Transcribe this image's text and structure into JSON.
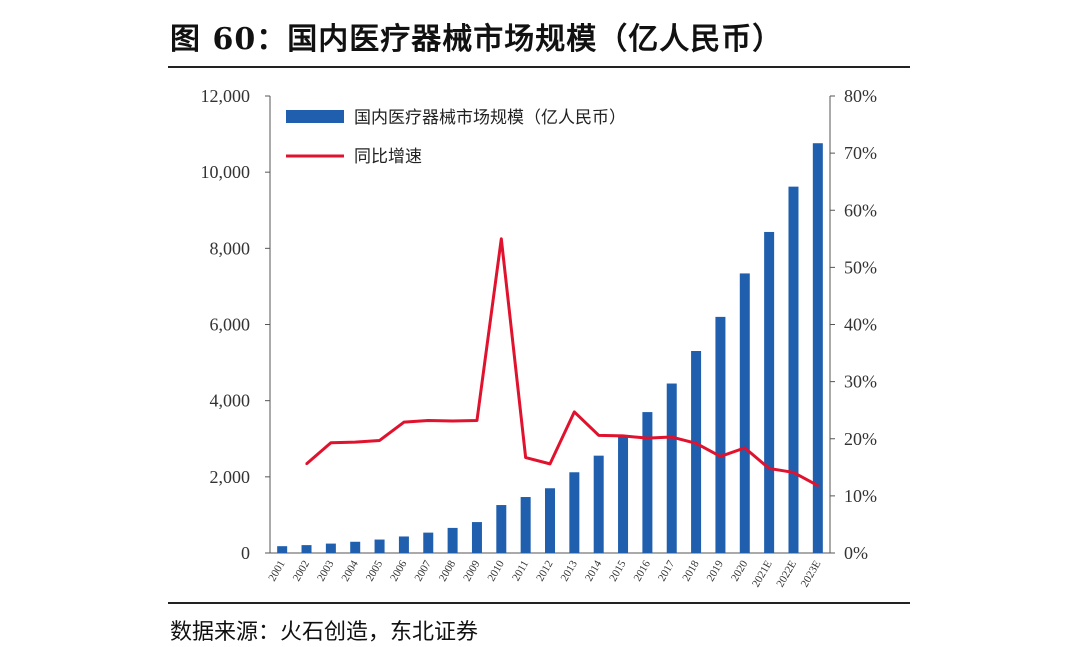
{
  "header": {
    "title": "图 60：国内医疗器械市场规模（亿人民币）"
  },
  "footer": {
    "source": "数据来源：火石创造，东北证券"
  },
  "chart_data": {
    "type": "bar",
    "categories": [
      "2001",
      "2002",
      "2003",
      "2004",
      "2005",
      "2006",
      "2007",
      "2008",
      "2009",
      "2010",
      "2011",
      "2012",
      "2013",
      "2014",
      "2015",
      "2016",
      "2017",
      "2018",
      "2019",
      "2020",
      "2021E",
      "2022E",
      "2023E"
    ],
    "series": [
      {
        "name": "国内医疗器械市场规模（亿人民币）",
        "type": "bar",
        "axis": "left",
        "color": "#1f5fae",
        "values": [
          179,
          207,
          247,
          295,
          353,
          434,
          535,
          659,
          812,
          1259,
          1470,
          1700,
          2120,
          2556,
          3080,
          3700,
          4450,
          5304,
          6200,
          7341,
          8430,
          9620,
          10760
        ]
      },
      {
        "name": "同比增速",
        "type": "line",
        "axis": "right",
        "color": "#e0122d",
        "values": [
          null,
          15.6,
          19.3,
          19.4,
          19.7,
          22.9,
          23.2,
          23.1,
          23.2,
          55.0,
          16.7,
          15.6,
          24.7,
          20.6,
          20.5,
          20.1,
          20.3,
          19.2,
          16.9,
          18.4,
          14.8,
          14.1,
          11.8
        ]
      }
    ],
    "y_left": {
      "ylim": [
        0,
        12000
      ],
      "ticks": [
        "0",
        "2,000",
        "4,000",
        "6,000",
        "8,000",
        "10,000",
        "12,000"
      ],
      "tick_values": [
        0,
        2000,
        4000,
        6000,
        8000,
        10000,
        12000
      ]
    },
    "y_right": {
      "ylim": [
        0,
        80
      ],
      "ticks": [
        "0%",
        "10%",
        "20%",
        "30%",
        "40%",
        "50%",
        "60%",
        "70%",
        "80%"
      ],
      "tick_values": [
        0,
        10,
        20,
        30,
        40,
        50,
        60,
        70,
        80
      ]
    },
    "grid": false,
    "legend_position": "top-left"
  }
}
